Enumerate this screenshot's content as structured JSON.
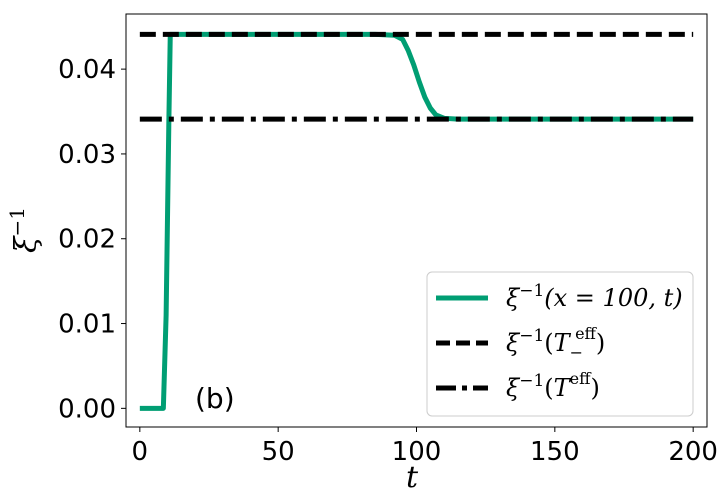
{
  "chart_data": {
    "type": "line",
    "xlabel": "t",
    "ylabel_base": "ξ",
    "ylabel_sup": "−1",
    "xlim": [
      -5,
      205
    ],
    "ylim": [
      -0.0022,
      0.0465
    ],
    "xticks": [
      0,
      50,
      100,
      150,
      200
    ],
    "xtick_labels": [
      "0",
      "50",
      "100",
      "150",
      "200"
    ],
    "yticks": [
      0.0,
      0.01,
      0.02,
      0.03,
      0.04
    ],
    "ytick_labels": [
      "0.00",
      "0.01",
      "0.02",
      "0.03",
      "0.04"
    ],
    "annotation": "(b)",
    "legend_position": "lower-right",
    "series": [
      {
        "name": "ξ^{-1}(x = 100, t)",
        "color": "#009E73",
        "style": "solid",
        "x": [
          0,
          5,
          8.5,
          9.5,
          10.5,
          11,
          20,
          50,
          85,
          92,
          95,
          97,
          99,
          101,
          103,
          105,
          107,
          110,
          115,
          150,
          200
        ],
        "y": [
          0.0,
          0.0,
          0.0,
          0.011,
          0.034,
          0.0441,
          0.0441,
          0.0441,
          0.0441,
          0.044,
          0.0435,
          0.0422,
          0.0405,
          0.0385,
          0.0367,
          0.0354,
          0.0346,
          0.0342,
          0.0341,
          0.0341,
          0.0341
        ]
      },
      {
        "name": "ξ^{-1}(T_−^{eff})",
        "color": "#000000",
        "style": "dashed",
        "x": [
          0,
          200
        ],
        "y": [
          0.0441,
          0.0441
        ]
      },
      {
        "name": "ξ^{-1}(T^{eff})",
        "color": "#000000",
        "style": "dashdot",
        "x": [
          0,
          200
        ],
        "y": [
          0.0341,
          0.0341
        ]
      }
    ]
  },
  "legend": {
    "entry1": {
      "base": "ξ",
      "sup": "−1",
      "arg": "(x = 100, t)"
    },
    "entry2": {
      "base": "ξ",
      "sup": "−1",
      "open": "(",
      "T": "T",
      "sub": "−",
      "tsup": "eff",
      "close": ")"
    },
    "entry3": {
      "base": "ξ",
      "sup": "−1",
      "open": "(",
      "T": "T",
      "tsup": "eff",
      "close": ")"
    }
  }
}
